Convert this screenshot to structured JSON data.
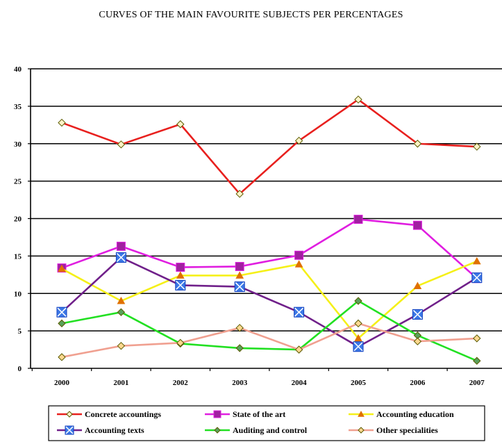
{
  "chart_data": {
    "type": "line",
    "title": "CURVES OF THE MAIN FAVOURITE SUBJECTS PER PERCENTAGES",
    "xlabel": "",
    "ylabel": "",
    "x": [
      "2000",
      "2001",
      "2002",
      "2003",
      "2004",
      "2005",
      "2006",
      "2007"
    ],
    "ylim": [
      0,
      40
    ],
    "yticks": [
      0,
      5,
      10,
      15,
      20,
      25,
      30,
      35,
      40
    ],
    "grid": "horizontal",
    "legend_position": "bottom",
    "series": [
      {
        "name": "Concrete accountings",
        "color": "#e8201e",
        "marker": "diamond",
        "marker_fill": "#fff3c8",
        "values": [
          32.8,
          29.9,
          32.6,
          23.3,
          30.4,
          35.9,
          30.0,
          29.6
        ]
      },
      {
        "name": "State of the art",
        "color": "#e01ee0",
        "marker": "square",
        "marker_fill": "#a020a0",
        "values": [
          13.4,
          16.3,
          13.5,
          13.6,
          15.1,
          19.9,
          19.1,
          12.0
        ]
      },
      {
        "name": "Accounting education",
        "color": "#f5f018",
        "marker": "triangle",
        "marker_fill": "#e07000",
        "values": [
          13.3,
          9.0,
          12.4,
          12.4,
          13.9,
          4.0,
          11.0,
          14.3
        ]
      },
      {
        "name": "Accounting texts",
        "color": "#70208a",
        "marker": "xbox",
        "marker_fill": "#3c78e6",
        "values": [
          7.5,
          14.8,
          11.1,
          10.9,
          7.5,
          2.9,
          7.2,
          12.1
        ]
      },
      {
        "name": "Auditing and control",
        "color": "#22e022",
        "marker": "diamond",
        "marker_fill": "#5aa05a",
        "values": [
          6.0,
          7.5,
          3.3,
          2.7,
          2.5,
          9.0,
          4.4,
          1.0
        ]
      },
      {
        "name": "Other specialities",
        "color": "#f0a090",
        "marker": "diamond",
        "marker_fill": "#ffd890",
        "values": [
          1.5,
          3.0,
          3.4,
          5.4,
          2.5,
          6.0,
          3.6,
          4.0
        ]
      }
    ]
  }
}
